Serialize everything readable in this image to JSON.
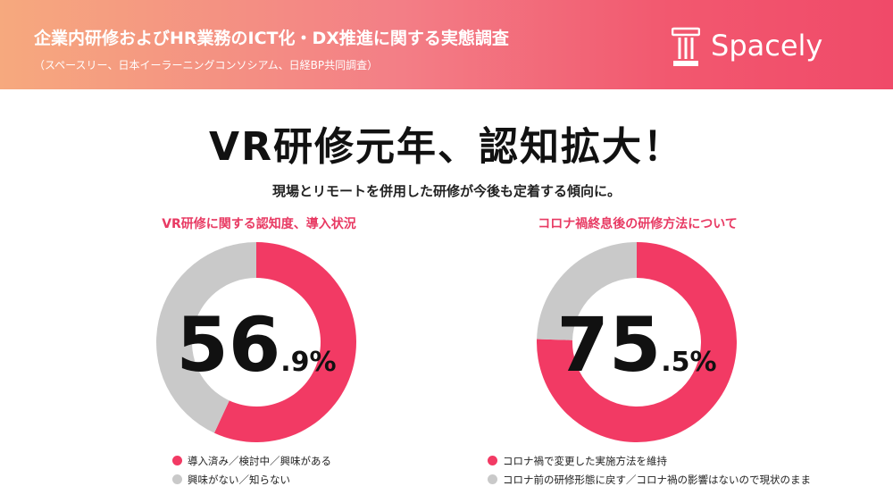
{
  "header": {
    "title": "企業内研修およびHR業務のICT化・DX推進に関する実態調査",
    "subtitle": "（スペースリー、日本イーラーニングコンソシアム、日経BP共同調査）",
    "logo_text": "Spacely"
  },
  "headline": "VR研修元年、認知拡大！",
  "subline": "現場とリモートを併用した研修が今後も定着する傾向に。",
  "colors": {
    "accent": "#f23a64",
    "gray": "#c9c9c9",
    "title_pink": "#e83a63"
  },
  "chart_data": [
    {
      "type": "pie",
      "title": "VR研修に関する認知度、導入状況",
      "center_label": {
        "int": "56",
        "dec": ".9%"
      },
      "slices": [
        {
          "label": "導入済み／検討中／興味がある",
          "value": 56.9,
          "color": "#f23a64"
        },
        {
          "label": "興味がない／知らない",
          "value": 43.1,
          "color": "#c9c9c9"
        }
      ]
    },
    {
      "type": "pie",
      "title": "コロナ禍終息後の研修方法について",
      "center_label": {
        "int": "75",
        "dec": ".5%"
      },
      "slices": [
        {
          "label": "コロナ禍で変更した実施方法を維持",
          "value": 75.5,
          "color": "#f23a64"
        },
        {
          "label": "コロナ前の研修形態に戻す／コロナ禍の影響はないので現状のまま",
          "value": 24.5,
          "color": "#c9c9c9"
        }
      ]
    }
  ]
}
